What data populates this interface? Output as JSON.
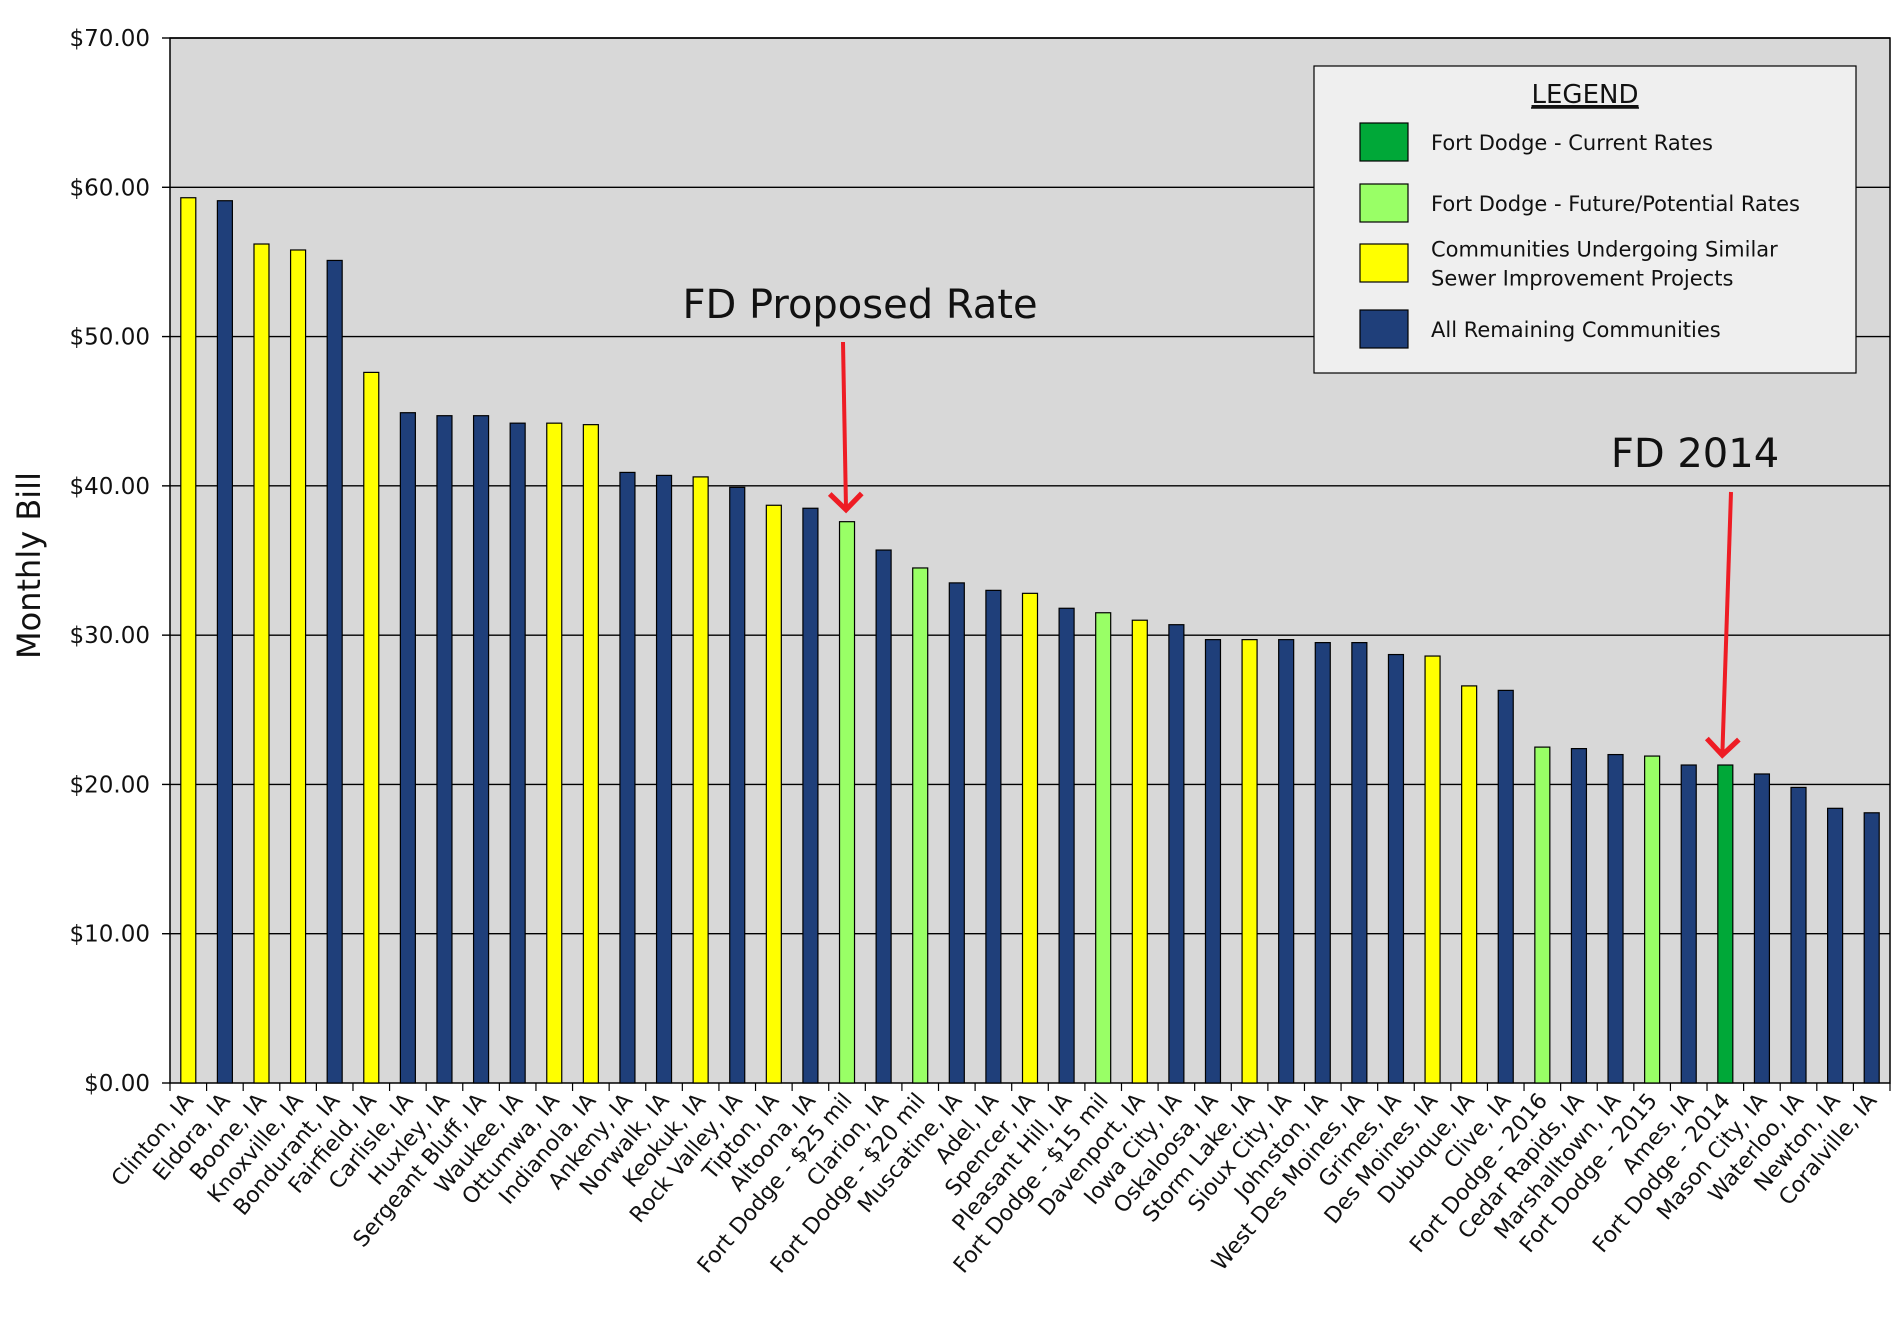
{
  "chart_data": {
    "type": "bar",
    "ylabel": "Monthly Bill",
    "ylim": [
      0,
      70
    ],
    "y_ticks": [
      "$0.00",
      "$10.00",
      "$20.00",
      "$30.00",
      "$40.00",
      "$50.00",
      "$60.00",
      "$70.00"
    ],
    "grid": true,
    "legend_placement": "top-right",
    "colors": {
      "current": "#00a838",
      "future": "#99ff66",
      "similar": "#ffff00",
      "remaining": "#1f3f7a",
      "plot_bg": "#d8d8d8",
      "legend_bg": "#efefef",
      "annotation_arrow": "#ee1c24"
    },
    "legend": {
      "title": "LEGEND",
      "items": [
        {
          "key": "current",
          "lines": [
            "Fort Dodge - Current Rates"
          ]
        },
        {
          "key": "future",
          "lines": [
            "Fort Dodge - Future/Potential Rates"
          ]
        },
        {
          "key": "similar",
          "lines": [
            "Communities Undergoing Similar",
            "Sewer Improvement Projects"
          ]
        },
        {
          "key": "remaining",
          "lines": [
            "All Remaining Communities"
          ]
        }
      ]
    },
    "categories": [
      "Clinton, IA",
      "Eldora, IA",
      "Boone, IA",
      "Knoxville, IA",
      "Bondurant, IA",
      "Fairfield, IA",
      "Carlisle, IA",
      "Huxley, IA",
      "Sergeant Bluff, IA",
      "Waukee, IA",
      "Ottumwa, IA",
      "Indianola, IA",
      "Ankeny, IA",
      "Norwalk, IA",
      "Keokuk, IA",
      "Rock Valley, IA",
      "Tipton, IA",
      "Altoona, IA",
      "Fort Dodge - $25 mil",
      "Clarion, IA",
      "Fort Dodge - $20 mil",
      "Muscatine, IA",
      "Adel, IA",
      "Spencer, IA",
      "Pleasant Hill, IA",
      "Fort Dodge - $15 mil",
      "Davenport, IA",
      "Iowa City, IA",
      "Oskaloosa, IA",
      "Storm Lake, IA",
      "Sioux City, IA",
      "Johnston, IA",
      "West Des Moines, IA",
      "Grimes, IA",
      "Des Moines, IA",
      "Dubuque, IA",
      "Clive, IA",
      "Fort Dodge - 2016",
      "Cedar Rapids, IA",
      "Marshalltown, IA",
      "Fort Dodge - 2015",
      "Ames, IA",
      "Fort Dodge - 2014",
      "Mason City, IA",
      "Waterloo, IA",
      "Newton, IA",
      "Coralville, IA"
    ],
    "values": [
      59.3,
      59.1,
      56.2,
      55.8,
      55.1,
      47.6,
      44.9,
      44.7,
      44.7,
      44.2,
      44.2,
      44.1,
      40.9,
      40.7,
      40.6,
      39.9,
      38.7,
      38.5,
      37.6,
      35.7,
      34.5,
      33.5,
      33.0,
      32.8,
      31.8,
      31.5,
      31.0,
      30.7,
      29.7,
      29.7,
      29.7,
      29.5,
      29.5,
      28.7,
      28.6,
      26.6,
      26.3,
      22.5,
      22.4,
      22.0,
      21.9,
      21.3,
      21.3,
      20.7,
      19.8,
      18.4,
      18.1
    ],
    "groups": [
      "similar",
      "remaining",
      "similar",
      "similar",
      "remaining",
      "similar",
      "remaining",
      "remaining",
      "remaining",
      "remaining",
      "similar",
      "similar",
      "remaining",
      "remaining",
      "similar",
      "remaining",
      "similar",
      "remaining",
      "future",
      "remaining",
      "future",
      "remaining",
      "remaining",
      "similar",
      "remaining",
      "future",
      "similar",
      "remaining",
      "remaining",
      "similar",
      "remaining",
      "remaining",
      "remaining",
      "remaining",
      "similar",
      "similar",
      "remaining",
      "future",
      "remaining",
      "remaining",
      "future",
      "remaining",
      "current",
      "remaining",
      "remaining",
      "remaining",
      "remaining"
    ],
    "annotations": [
      {
        "text": "FD Proposed Rate",
        "target_category": "Fort Dodge - $25 mil"
      },
      {
        "text": "FD 2014",
        "target_category": "Fort Dodge - 2014"
      }
    ]
  }
}
